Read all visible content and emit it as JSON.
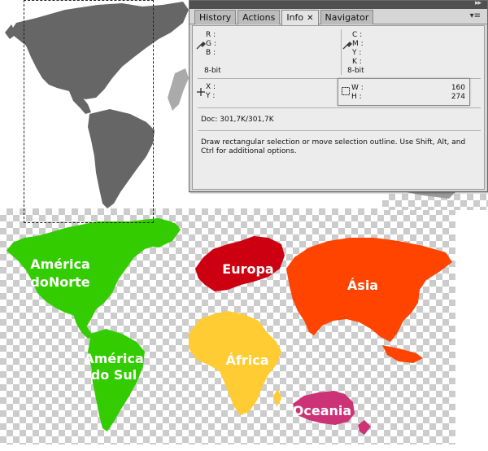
{
  "panel": {
    "tabs": [
      {
        "label": "History"
      },
      {
        "label": "Actions"
      },
      {
        "label": "Info"
      },
      {
        "label": "Navigator"
      }
    ],
    "active_tab": "Info",
    "rgb_labels": {
      "r": "R :",
      "g": "G :",
      "b": "B :"
    },
    "rgb_bitdepth": "8-bit",
    "cmyk_labels": {
      "c": "C :",
      "m": "M :",
      "y": "Y :",
      "k": "K :"
    },
    "cmyk_bitdepth": "8-bit",
    "xy_labels": {
      "x": "X :",
      "y": "Y :"
    },
    "wh_labels": {
      "w": "W :",
      "h": "H :"
    },
    "wh_values": {
      "w": "160",
      "h": "274"
    },
    "doc_size": "Doc: 301,7K/301,7K",
    "hint": "Draw rectangular selection or move selection outline.  Use Shift, Alt, and Ctrl for additional options.",
    "icons": [
      "eyedropper-icon",
      "crosshair-icon",
      "marquee-icon",
      "panel-menu-icon",
      "collapse-icon"
    ]
  },
  "map": {
    "labels": {
      "north_america_1": "América",
      "north_america_2": "doNorte",
      "south_america_1": "América",
      "south_america_2": "do Sul",
      "europe": "Europa",
      "asia": "Ásia",
      "africa": "África",
      "oceania": "Oceania"
    },
    "colors": {
      "americas_gray": "#666666",
      "north_america": "#33cc00",
      "south_america": "#33cc00",
      "europe": "#cc0011",
      "asia": "#ff4400",
      "africa": "#ffcc33",
      "oceania": "#cc3377"
    }
  }
}
